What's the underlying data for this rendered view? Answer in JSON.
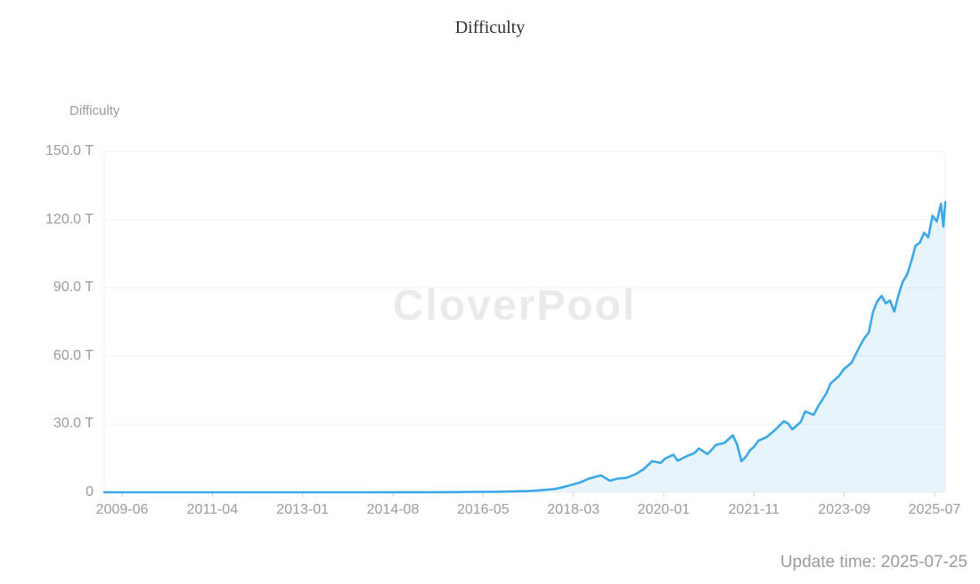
{
  "page": {
    "title": "Difficulty",
    "watermark": "CloverPool",
    "update_time": "Update time: 2025-07-25"
  },
  "chart_data": {
    "type": "area",
    "title": "Difficulty",
    "y_axis_name": "Difficulty",
    "unit": "T",
    "ylim": [
      0,
      150
    ],
    "grid": true,
    "legend": false,
    "line_color": "#3da8e8",
    "area_color": "rgba(61,168,232,0.12)",
    "gridline_color": "#eef2f7",
    "tick_color": "#ccd3da",
    "label_color": "#9b9b9b",
    "y_ticks": [
      {
        "label": "150.0 T",
        "value": 150
      },
      {
        "label": "120.0 T",
        "value": 120
      },
      {
        "label": "90.0 T",
        "value": 90
      },
      {
        "label": "60.0 T",
        "value": 60
      },
      {
        "label": "30.0 T",
        "value": 30
      },
      {
        "label": "0",
        "value": 0
      }
    ],
    "x_ticks": [
      "2009-06",
      "2011-04",
      "2013-01",
      "2014-08",
      "2016-05",
      "2018-03",
      "2020-01",
      "2021-11",
      "2023-09",
      "2025-07"
    ],
    "series": [
      {
        "name": "Difficulty",
        "points": [
          [
            "2009-06",
            0
          ],
          [
            "2010-03",
            0
          ],
          [
            "2010-12",
            0
          ],
          [
            "2011-06",
            0
          ],
          [
            "2012-03",
            0
          ],
          [
            "2012-12",
            0
          ],
          [
            "2013-06",
            2e-05
          ],
          [
            "2013-12",
            0.0007
          ],
          [
            "2014-04",
            0.006
          ],
          [
            "2014-08",
            0.024
          ],
          [
            "2014-12",
            0.04
          ],
          [
            "2015-06",
            0.048
          ],
          [
            "2015-12",
            0.073
          ],
          [
            "2016-05",
            0.194
          ],
          [
            "2016-09",
            0.225
          ],
          [
            "2017-01",
            0.337
          ],
          [
            "2017-05",
            0.559
          ],
          [
            "2017-08",
            0.923
          ],
          [
            "2017-11",
            1.45
          ],
          [
            "2018-01",
            2.23
          ],
          [
            "2018-03",
            3.29
          ],
          [
            "2018-05",
            4.31
          ],
          [
            "2018-07",
            5.95
          ],
          [
            "2018-09",
            7.02
          ],
          [
            "2018-10",
            7.45
          ],
          [
            "2018-12",
            5.11
          ],
          [
            "2019-02",
            6.07
          ],
          [
            "2019-04",
            6.39
          ],
          [
            "2019-06",
            7.93
          ],
          [
            "2019-08",
            10.18
          ],
          [
            "2019-10",
            13.69
          ],
          [
            "2019-12",
            12.95
          ],
          [
            "2020-01",
            14.78
          ],
          [
            "2020-03",
            16.55
          ],
          [
            "2020-04",
            13.91
          ],
          [
            "2020-06",
            15.78
          ],
          [
            "2020-08",
            17.35
          ],
          [
            "2020-09",
            19.31
          ],
          [
            "2020-11",
            16.79
          ],
          [
            "2020-12",
            18.67
          ],
          [
            "2021-01",
            20.82
          ],
          [
            "2021-03",
            21.72
          ],
          [
            "2021-05",
            25.05
          ],
          [
            "2021-06",
            21.05
          ],
          [
            "2021-07",
            13.67
          ],
          [
            "2021-08",
            15.56
          ],
          [
            "2021-09",
            18.42
          ],
          [
            "2021-10",
            20.08
          ],
          [
            "2021-11",
            22.67
          ],
          [
            "2022-01",
            24.37
          ],
          [
            "2022-03",
            27.55
          ],
          [
            "2022-05",
            31.25
          ],
          [
            "2022-06",
            30.28
          ],
          [
            "2022-07",
            27.69
          ],
          [
            "2022-09",
            30.98
          ],
          [
            "2022-10",
            35.61
          ],
          [
            "2022-12",
            34.09
          ],
          [
            "2023-01",
            37.59
          ],
          [
            "2023-03",
            43.55
          ],
          [
            "2023-04",
            47.89
          ],
          [
            "2023-06",
            51.23
          ],
          [
            "2023-07",
            53.91
          ],
          [
            "2023-09",
            57.12
          ],
          [
            "2023-10",
            61.03
          ],
          [
            "2023-11",
            64.68
          ],
          [
            "2023-12",
            67.96
          ],
          [
            "2024-01",
            70.34
          ],
          [
            "2024-02",
            79.35
          ],
          [
            "2024-03",
            83.95
          ],
          [
            "2024-04",
            86.39
          ],
          [
            "2024-05",
            83.15
          ],
          [
            "2024-06",
            84.38
          ],
          [
            "2024-07",
            79.5
          ],
          [
            "2024-08",
            86.87
          ],
          [
            "2024-09",
            92.67
          ],
          [
            "2024-10",
            95.67
          ],
          [
            "2024-11",
            101.65
          ],
          [
            "2024-12",
            108.52
          ],
          [
            "2025-01",
            109.78
          ],
          [
            "2025-02",
            114.17
          ],
          [
            "2025-03",
            112.15
          ],
          [
            "2025-04",
            121.66
          ],
          [
            "2025-05",
            119.12
          ],
          [
            "2025-06",
            126.98
          ],
          [
            "2025-06-18",
            116.96
          ],
          [
            "2025-07",
            127.62
          ]
        ]
      }
    ]
  }
}
